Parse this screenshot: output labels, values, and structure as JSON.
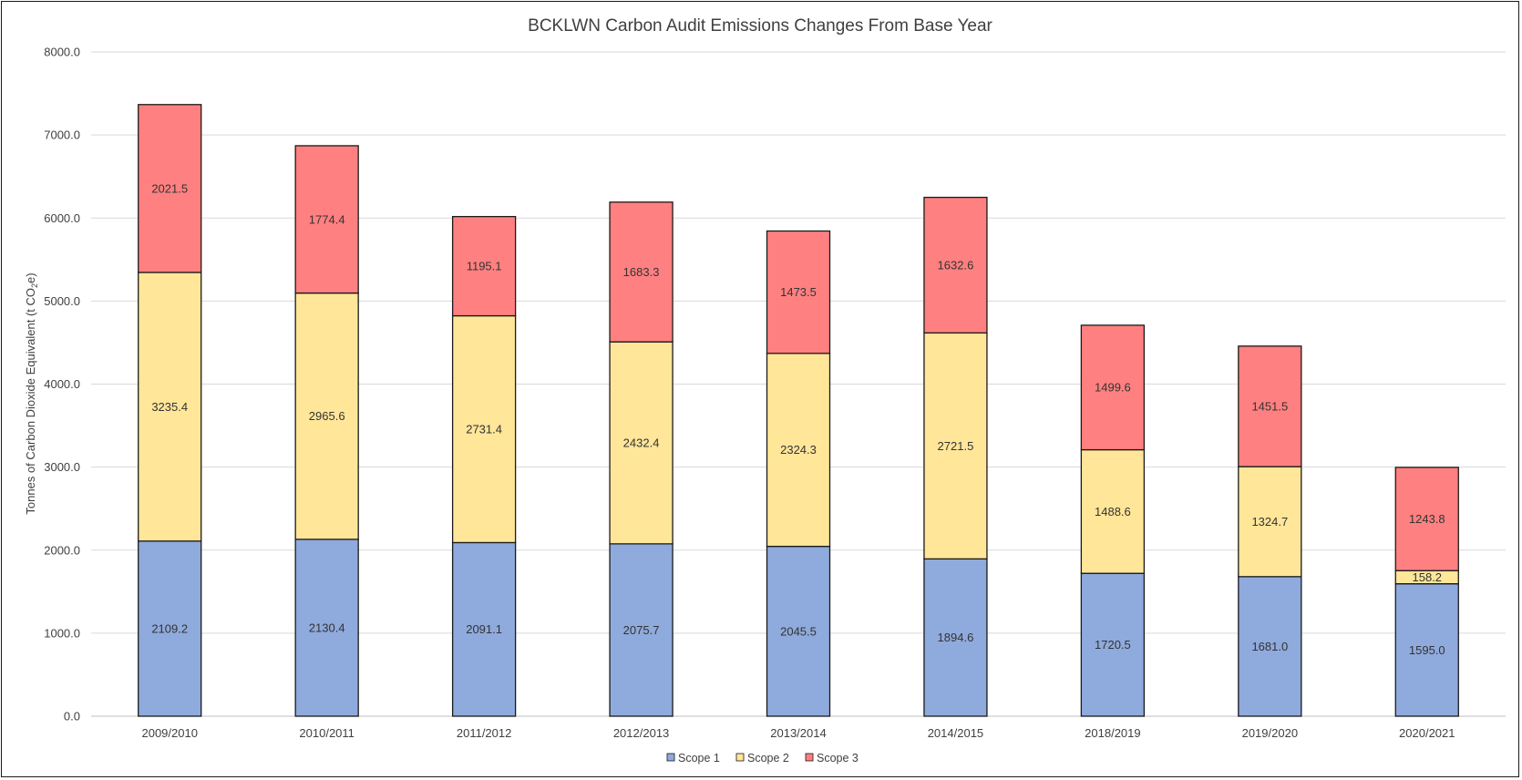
{
  "chart_data": {
    "type": "bar",
    "stacked": true,
    "title": "BCKLWN Carbon Audit Emissions Changes From Base Year",
    "ylabel_prefix": "Tonnes of Carbon Dioxide Equivalent (t CO",
    "ylabel_sub": "2",
    "ylabel_suffix": "e)",
    "xlabel": "",
    "ylim": [
      0,
      8000
    ],
    "ytick_step": 1000,
    "ytick_labels": [
      "0.0",
      "1000.0",
      "2000.0",
      "3000.0",
      "4000.0",
      "5000.0",
      "6000.0",
      "7000.0",
      "8000.0"
    ],
    "grid": "horizontal",
    "legend_position": "bottom",
    "categories": [
      "2009/2010",
      "2010/2011",
      "2011/2012",
      "2012/2013",
      "2013/2014",
      "2014/2015",
      "2018/2019",
      "2019/2020",
      "2020/2021"
    ],
    "series": [
      {
        "name": "Scope 1",
        "color": "#8faadc",
        "values": [
          2109.2,
          2130.4,
          2091.1,
          2075.7,
          2045.5,
          1894.6,
          1720.5,
          1681.0,
          1595.0
        ]
      },
      {
        "name": "Scope 2",
        "color": "#ffe699",
        "values": [
          3235.4,
          2965.6,
          2731.4,
          2432.4,
          2324.3,
          2721.5,
          1488.6,
          1324.7,
          158.2
        ]
      },
      {
        "name": "Scope 3",
        "color": "#ff8080",
        "values": [
          2021.5,
          1774.4,
          1195.1,
          1683.3,
          1473.5,
          1632.6,
          1499.6,
          1451.5,
          1243.8
        ]
      }
    ]
  }
}
